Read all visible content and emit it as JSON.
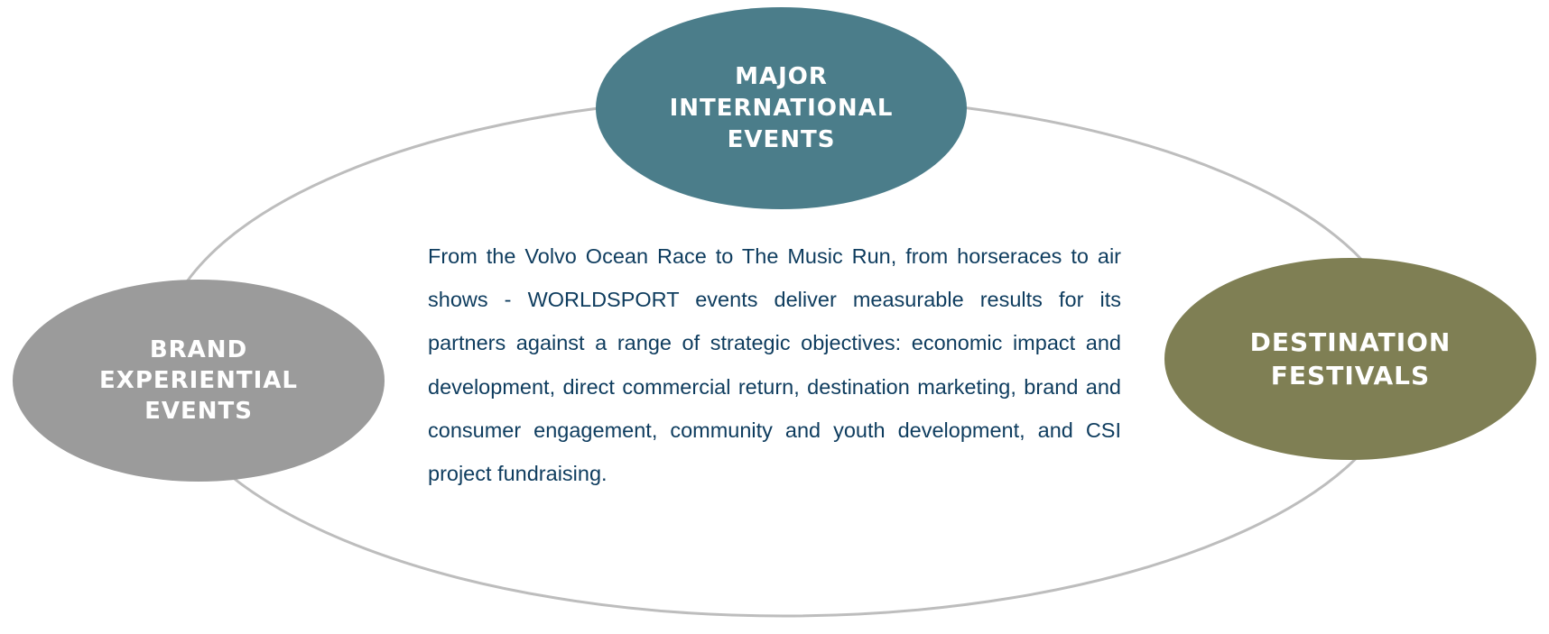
{
  "diagram": {
    "nodes": [
      {
        "id": "top",
        "label": "MAJOR\nINTERNATIONAL\nEVENTS",
        "color": "#4b7d8a"
      },
      {
        "id": "left",
        "label": "BRAND\nEXPERIENTIAL\nEVENTS",
        "color": "#9b9b9b"
      },
      {
        "id": "right",
        "label": "DESTINATION\nFESTIVALS",
        "color": "#7f7f54"
      }
    ],
    "ring_color": "#bdbdbd",
    "text_color": "#0e3c5e",
    "center_text": "From the Volvo Ocean Race to The Music Run, from horseraces to air shows - WORLDSPORT events deliver measurable results for its partners against a range of strategic objectives:  economic impact and development, direct commercial return, destination marketing, brand and consumer engagement, community and youth development, and CSI project fundraising."
  }
}
